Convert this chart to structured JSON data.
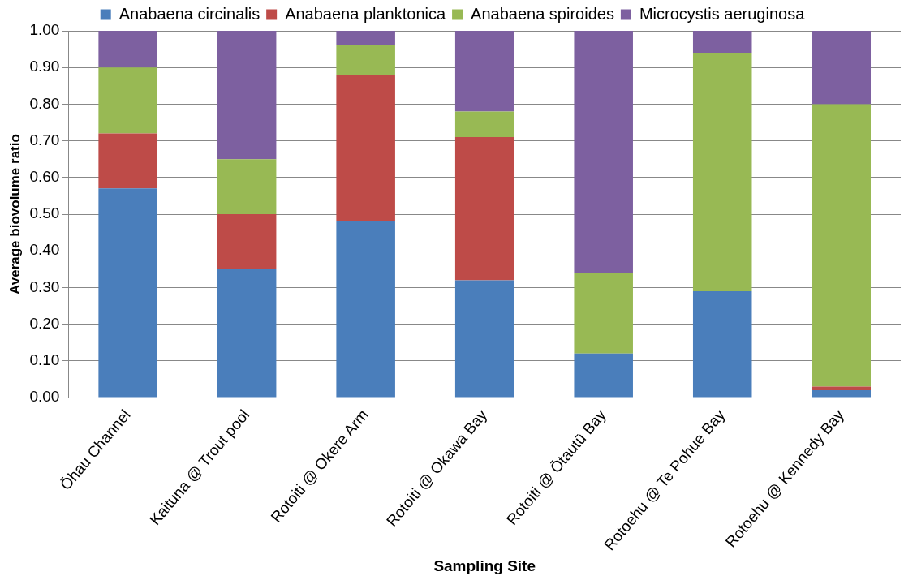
{
  "chart_data": {
    "type": "bar",
    "stacked": true,
    "xlabel": "Sampling Site",
    "ylabel": "Average biovolume ratio",
    "categories": [
      "Ōhau Channel",
      "Kaituna @ Trout pool",
      "Rotoiti @ Okere Arm",
      "Rotoiti @ Okawa Bay",
      "Rotoiti @ Ōtautū Bay",
      "Rotoehu @ Te Pohue Bay",
      "Rotoehu @ Kennedy Bay"
    ],
    "series": [
      {
        "name": "Anabaena circinalis",
        "color": "#4a7ebb",
        "values": [
          0.57,
          0.35,
          0.48,
          0.32,
          0.12,
          0.29,
          0.02
        ]
      },
      {
        "name": "Anabaena planktonica",
        "color": "#be4b48",
        "values": [
          0.15,
          0.15,
          0.4,
          0.39,
          0,
          0,
          0.01
        ]
      },
      {
        "name": "Anabaena spiroides",
        "color": "#98b954",
        "values": [
          0.18,
          0.15,
          0.08,
          0.07,
          0.22,
          0.65,
          0.77
        ]
      },
      {
        "name": "Microcystis aeruginosa",
        "color": "#7d60a0",
        "values": [
          0.1,
          0.35,
          0.04,
          0.22,
          0.66,
          0.06,
          0.2
        ]
      }
    ],
    "ylim": [
      0,
      1
    ],
    "yticks": [
      {
        "value": 0,
        "label": "0.00"
      },
      {
        "value": 0.1,
        "label": "0.10"
      },
      {
        "value": 0.2,
        "label": "0.20"
      },
      {
        "value": 0.3,
        "label": "0.30"
      },
      {
        "value": 0.4,
        "label": "0.40"
      },
      {
        "value": 0.5,
        "label": "0.50"
      },
      {
        "value": 0.6,
        "label": "0.60"
      },
      {
        "value": 0.7,
        "label": "0.70"
      },
      {
        "value": 0.8,
        "label": "0.80"
      },
      {
        "value": 0.9,
        "label": "0.90"
      },
      {
        "value": 1,
        "label": "1.00"
      }
    ],
    "grid": "y",
    "legend": "top"
  }
}
